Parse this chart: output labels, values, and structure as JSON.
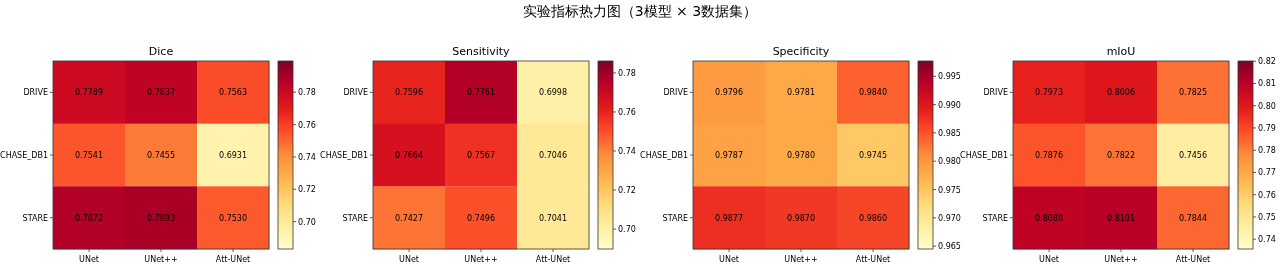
{
  "chart_data": [
    {
      "type": "other",
      "title": "实验指标热力图（3模型 × 3数据集）"
    },
    {
      "type": "heatmap",
      "title": "Dice",
      "categories": [
        "UNet",
        "UNet++",
        "Att-UNet"
      ],
      "y_categories": [
        "DRIVE",
        "CHASE_DB1",
        "STARE"
      ],
      "cells": [
        [
          0.7789,
          0.7837,
          0.7563
        ],
        [
          0.7541,
          0.7455,
          0.6931
        ],
        [
          0.7872,
          0.7893,
          0.753
        ]
      ],
      "cell_labels": [
        [
          "0.7789",
          "0.7837",
          "0.7563"
        ],
        [
          "0.7541",
          "0.7455",
          "0.6931"
        ],
        [
          "0.7872",
          "0.7893",
          "0.7530"
        ]
      ],
      "clim": [
        0.6831,
        0.7993
      ],
      "cticks": [
        {
          "value": 0.7,
          "label": "0.70"
        },
        {
          "value": 0.72,
          "label": "0.72"
        },
        {
          "value": 0.74,
          "label": "0.74"
        },
        {
          "value": 0.76,
          "label": "0.76"
        },
        {
          "value": 0.78,
          "label": "0.78"
        }
      ]
    },
    {
      "type": "heatmap",
      "title": "Sensitivity",
      "categories": [
        "UNet",
        "UNet++",
        "Att-UNet"
      ],
      "y_categories": [
        "DRIVE",
        "CHASE_DB1",
        "STARE"
      ],
      "cells": [
        [
          0.7596,
          0.7761,
          0.6998
        ],
        [
          0.7664,
          0.7567,
          0.7046
        ],
        [
          0.7427,
          0.7496,
          0.7041
        ]
      ],
      "cell_labels": [
        [
          "0.7596",
          "0.7761",
          "0.6998"
        ],
        [
          "0.7664",
          "0.7567",
          "0.7046"
        ],
        [
          "0.7427",
          "0.7496",
          "0.7041"
        ]
      ],
      "clim": [
        0.6898,
        0.7861
      ],
      "cticks": [
        {
          "value": 0.7,
          "label": "0.70"
        },
        {
          "value": 0.72,
          "label": "0.72"
        },
        {
          "value": 0.74,
          "label": "0.74"
        },
        {
          "value": 0.76,
          "label": "0.76"
        },
        {
          "value": 0.78,
          "label": "0.78"
        }
      ]
    },
    {
      "type": "heatmap",
      "title": "Specificity",
      "categories": [
        "UNet",
        "UNet++",
        "Att-UNet"
      ],
      "y_categories": [
        "DRIVE",
        "CHASE_DB1",
        "STARE"
      ],
      "cells": [
        [
          0.9796,
          0.9781,
          0.984
        ],
        [
          0.9787,
          0.978,
          0.9745
        ],
        [
          0.9877,
          0.987,
          0.986
        ]
      ],
      "cell_labels": [
        [
          "0.9796",
          "0.9781",
          "0.9840"
        ],
        [
          "0.9787",
          "0.9780",
          "0.9745"
        ],
        [
          "0.9877",
          "0.9870",
          "0.9860"
        ]
      ],
      "clim": [
        0.9645,
        0.9977
      ],
      "cticks": [
        0.965,
        {
          "value": 0.97,
          "label": "0.970"
        },
        0.975,
        {
          "value": 0.98,
          "label": "0.980"
        },
        0.985,
        {
          "value": 0.99,
          "label": "0.990"
        },
        0.995
      ]
    },
    {
      "type": "heatmap",
      "title": "mIoU",
      "categories": [
        "UNet",
        "UNet++",
        "Att-UNet"
      ],
      "y_categories": [
        "DRIVE",
        "CHASE_DB1",
        "STARE"
      ],
      "cells": [
        [
          0.7973,
          0.8006,
          0.7825
        ],
        [
          0.7876,
          0.7822,
          0.7456
        ],
        [
          0.8088,
          0.8101,
          0.7844
        ]
      ],
      "cell_labels": [
        [
          "0.7973",
          "0.8006",
          "0.7825"
        ],
        [
          "0.7876",
          "0.7822",
          "0.7456"
        ],
        [
          "0.8088",
          "0.8101",
          "0.7844"
        ]
      ],
      "clim": [
        0.7356,
        0.8201
      ],
      "cticks": [
        {
          "value": 0.74,
          "label": "0.74"
        },
        0.75,
        0.76,
        0.77,
        0.78,
        0.79,
        {
          "value": 0.8,
          "label": "0.80"
        },
        0.81,
        {
          "value": 0.82,
          "label": "0.82"
        }
      ]
    }
  ]
}
